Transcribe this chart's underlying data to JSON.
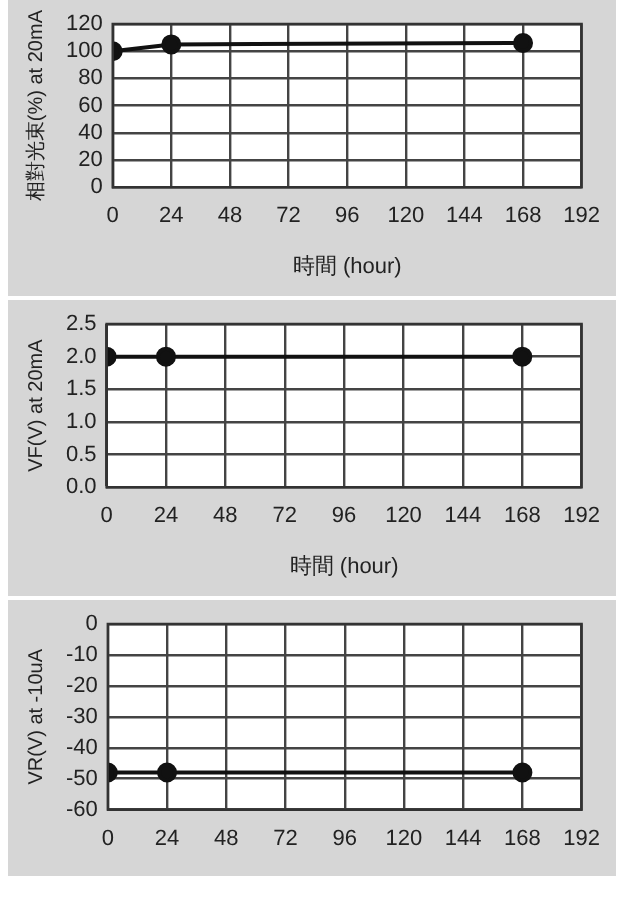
{
  "chart_data": [
    {
      "type": "line",
      "xlabel": "時間 (hour)",
      "ylabel": "相對光束(%) at 20mA",
      "x": [
        0,
        24,
        168
      ],
      "series": [
        {
          "color": "#111111",
          "values": [
            100,
            105,
            106
          ]
        }
      ],
      "xlim": [
        0,
        192
      ],
      "xticks": [
        0,
        24,
        48,
        72,
        96,
        120,
        144,
        168,
        192
      ],
      "ylim": [
        0,
        120
      ],
      "yticks": [
        0,
        20,
        40,
        60,
        80,
        100,
        120
      ],
      "grid": true,
      "legend": false,
      "marker": "circle",
      "line_style": "solid"
    },
    {
      "type": "line",
      "xlabel": "時間 (hour)",
      "ylabel": "VF(V) at 20mA",
      "x": [
        0,
        24,
        168
      ],
      "series": [
        {
          "color": "#111111",
          "values": [
            2.0,
            2.0,
            2.0
          ]
        }
      ],
      "xlim": [
        0,
        192
      ],
      "xticks": [
        0,
        24,
        48,
        72,
        96,
        120,
        144,
        168,
        192
      ],
      "ylim": [
        0,
        2.5
      ],
      "yticks": [
        {
          "value": 0,
          "label": "0.0"
        },
        {
          "value": 0.5,
          "label": "0.5"
        },
        {
          "value": 1,
          "label": "1.0"
        },
        {
          "value": 1.5,
          "label": "1.5"
        },
        {
          "value": 2,
          "label": "2.0"
        },
        {
          "value": 2.5,
          "label": "2.5"
        }
      ],
      "grid": true,
      "legend": false,
      "marker": "circle",
      "line_style": "solid"
    },
    {
      "type": "line",
      "ylabel": "VR(V) at -10uA",
      "x": [
        0,
        24,
        168
      ],
      "series": [
        {
          "color": "#111111",
          "values": [
            -48,
            -48,
            -48
          ]
        }
      ],
      "xlim": [
        0,
        192
      ],
      "xticks": [
        0,
        24,
        48,
        72,
        96,
        120,
        144,
        168,
        192
      ],
      "ylim": [
        -60,
        0
      ],
      "yticks": [
        -60,
        -50,
        -40,
        -30,
        -20,
        -10,
        0
      ],
      "grid": true,
      "legend": false,
      "marker": "circle",
      "line_style": "solid"
    }
  ]
}
